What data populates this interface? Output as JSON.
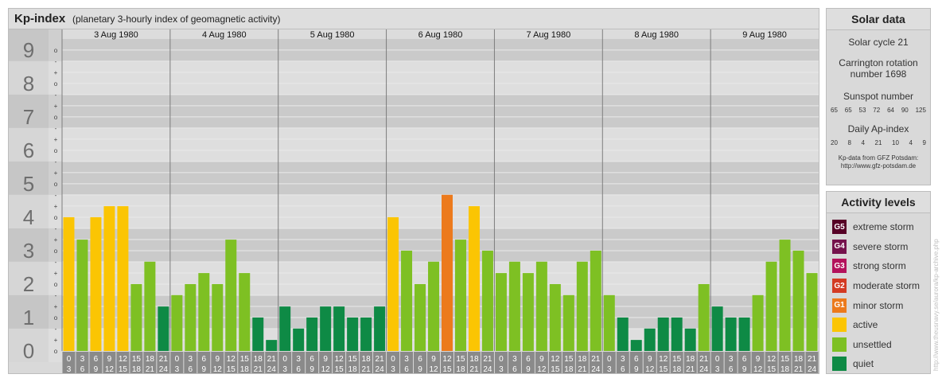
{
  "header": {
    "title": "Kp-index",
    "subtitle": "(planetary 3-hourly index of geomagnetic activity)"
  },
  "chart_data": {
    "type": "bar",
    "days": [
      "3 Aug 1980",
      "4 Aug 1980",
      "5 Aug 1980",
      "6 Aug 1980",
      "7 Aug 1980",
      "8 Aug 1980",
      "9 Aug 1980"
    ],
    "interval_labels": [
      [
        "0",
        "3"
      ],
      [
        "3",
        "6"
      ],
      [
        "6",
        "9"
      ],
      [
        "9",
        "12"
      ],
      [
        "12",
        "15"
      ],
      [
        "15",
        "18"
      ],
      [
        "18",
        "21"
      ],
      [
        "21",
        "24"
      ]
    ],
    "y_tick_labels": [
      "0",
      "1",
      "2",
      "3",
      "4",
      "5",
      "6",
      "7",
      "8",
      "9"
    ],
    "y_minor_labels": [
      "o",
      "+",
      "-"
    ],
    "ylim": [
      0,
      9.33
    ],
    "values": [
      4.0,
      3.33,
      4.0,
      4.33,
      4.33,
      2.0,
      2.67,
      1.33,
      1.67,
      2.0,
      2.33,
      2.0,
      3.33,
      2.33,
      1.0,
      0.33,
      1.33,
      0.67,
      1.0,
      1.33,
      1.33,
      1.0,
      1.0,
      1.33,
      4.0,
      3.0,
      2.0,
      2.67,
      4.67,
      3.33,
      4.33,
      3.0,
      2.33,
      2.67,
      2.33,
      2.67,
      2.0,
      1.67,
      2.67,
      3.0,
      1.67,
      1.0,
      0.33,
      0.67,
      1.0,
      1.0,
      0.67,
      2.0,
      1.33,
      1.0,
      1.0,
      1.67,
      2.67,
      3.33,
      3.0,
      2.33
    ],
    "colors": {
      "quiet": "#0e8a45",
      "unsettled": "#7ec023",
      "active": "#fbc503",
      "minor": "#ec7a1c",
      "moderate": "#d33a23",
      "strong": "#b3125b",
      "severe": "#75124c",
      "extreme": "#560126"
    }
  },
  "solar": {
    "title": "Solar data",
    "cycle": "Solar cycle 21",
    "rotation_line1": "Carrington rotation",
    "rotation_line2": "number 1698",
    "sunspot_title": "Sunspot number",
    "sunspot_values": [
      "65",
      "65",
      "53",
      "72",
      "64",
      "90",
      "125"
    ],
    "ap_title": "Daily Ap-index",
    "ap_values": [
      "20",
      "8",
      "4",
      "21",
      "10",
      "4",
      "9"
    ],
    "source_line1": "Kp-data from GFZ Potsdam:",
    "source_line2": "http://www.gfz-potsdam.de"
  },
  "activity": {
    "title": "Activity levels",
    "items": [
      {
        "code": "G5",
        "label": "extreme storm",
        "color": "#560126"
      },
      {
        "code": "G4",
        "label": "severe storm",
        "color": "#75124c"
      },
      {
        "code": "G3",
        "label": "strong storm",
        "color": "#b3125b"
      },
      {
        "code": "G2",
        "label": "moderate storm",
        "color": "#d33a23"
      },
      {
        "code": "G1",
        "label": "minor storm",
        "color": "#ec7a1c"
      },
      {
        "code": "",
        "label": "active",
        "color": "#fbc503"
      },
      {
        "code": "",
        "label": "unsettled",
        "color": "#7ec023"
      },
      {
        "code": "",
        "label": "quiet",
        "color": "#0e8a45"
      }
    ]
  },
  "watermark": "http://www.theusnavy.se/aurora/kp-archive.php"
}
